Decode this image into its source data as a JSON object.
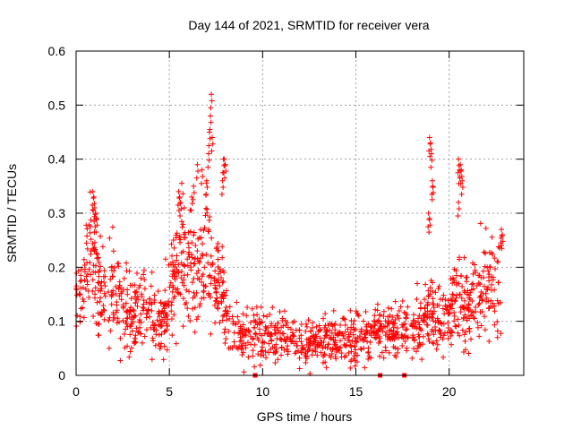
{
  "chart_data": {
    "type": "scatter",
    "title": "Day 144 of 2021, SRMTID for receiver vera",
    "xlabel": "GPS time / hours",
    "ylabel": "SRMTID / TECUs",
    "xlim": [
      0,
      24
    ],
    "ylim": [
      0,
      0.6
    ],
    "xticks": [
      0,
      5,
      10,
      15,
      20
    ],
    "xtick_labels": [
      "0",
      "5",
      "10",
      "15",
      "20"
    ],
    "yticks": [
      0,
      0.1,
      0.2,
      0.3,
      0.4,
      0.5,
      0.6
    ],
    "ytick_labels": [
      "0",
      "0.1",
      "0.2",
      "0.3",
      "0.4",
      "0.5",
      "0.6"
    ],
    "grid": true,
    "marker": "+",
    "color": "#ff0000",
    "series": [
      {
        "name": "SRMTID",
        "trend": [
          [
            0.0,
            0.13
          ],
          [
            0.3,
            0.16
          ],
          [
            0.6,
            0.2
          ],
          [
            0.9,
            0.24
          ],
          [
            1.2,
            0.17
          ],
          [
            1.5,
            0.14
          ],
          [
            1.8,
            0.18
          ],
          [
            2.2,
            0.15
          ],
          [
            2.6,
            0.12
          ],
          [
            3.0,
            0.11
          ],
          [
            3.5,
            0.12
          ],
          [
            4.0,
            0.11
          ],
          [
            4.5,
            0.1
          ],
          [
            5.0,
            0.14
          ],
          [
            5.3,
            0.19
          ],
          [
            5.6,
            0.25
          ],
          [
            6.0,
            0.2
          ],
          [
            6.5,
            0.18
          ],
          [
            7.0,
            0.24
          ],
          [
            7.3,
            0.16
          ],
          [
            7.7,
            0.18
          ],
          [
            8.0,
            0.12
          ],
          [
            8.5,
            0.08
          ],
          [
            9.0,
            0.07
          ],
          [
            9.5,
            0.08
          ],
          [
            10.0,
            0.07
          ],
          [
            11.0,
            0.07
          ],
          [
            12.0,
            0.06
          ],
          [
            13.0,
            0.06
          ],
          [
            14.0,
            0.07
          ],
          [
            15.0,
            0.07
          ],
          [
            16.0,
            0.08
          ],
          [
            17.0,
            0.08
          ],
          [
            18.0,
            0.09
          ],
          [
            18.5,
            0.1
          ],
          [
            19.0,
            0.12
          ],
          [
            19.5,
            0.09
          ],
          [
            20.0,
            0.11
          ],
          [
            20.5,
            0.14
          ],
          [
            21.0,
            0.12
          ],
          [
            21.5,
            0.16
          ],
          [
            22.0,
            0.17
          ],
          [
            22.5,
            0.17
          ],
          [
            22.8,
            0.18
          ]
        ],
        "spikes": [
          [
            0.9,
            0.34
          ],
          [
            0.95,
            0.33
          ],
          [
            1.0,
            0.31
          ],
          [
            1.05,
            0.3
          ],
          [
            1.1,
            0.29
          ],
          [
            5.5,
            0.34
          ],
          [
            5.55,
            0.33
          ],
          [
            5.6,
            0.32
          ],
          [
            6.2,
            0.33
          ],
          [
            6.3,
            0.35
          ],
          [
            6.5,
            0.39
          ],
          [
            6.75,
            0.38
          ],
          [
            7.0,
            0.36
          ],
          [
            7.1,
            0.41
          ],
          [
            7.15,
            0.45
          ],
          [
            7.2,
            0.48
          ],
          [
            7.25,
            0.52
          ],
          [
            7.3,
            0.44
          ],
          [
            7.9,
            0.4
          ],
          [
            7.95,
            0.4
          ],
          [
            8.0,
            0.39
          ],
          [
            7.85,
            0.36
          ],
          [
            18.95,
            0.44
          ],
          [
            19.0,
            0.43
          ],
          [
            19.05,
            0.41
          ],
          [
            19.1,
            0.36
          ],
          [
            19.12,
            0.35
          ],
          [
            18.9,
            0.3
          ],
          [
            18.95,
            0.29
          ],
          [
            20.5,
            0.4
          ],
          [
            20.55,
            0.38
          ],
          [
            20.6,
            0.39
          ],
          [
            20.65,
            0.38
          ],
          [
            20.7,
            0.36
          ],
          [
            20.5,
            0.32
          ],
          [
            22.8,
            0.27
          ],
          [
            22.85,
            0.26
          ]
        ],
        "ground_points": [
          9.6,
          16.3,
          17.6
        ]
      }
    ]
  }
}
